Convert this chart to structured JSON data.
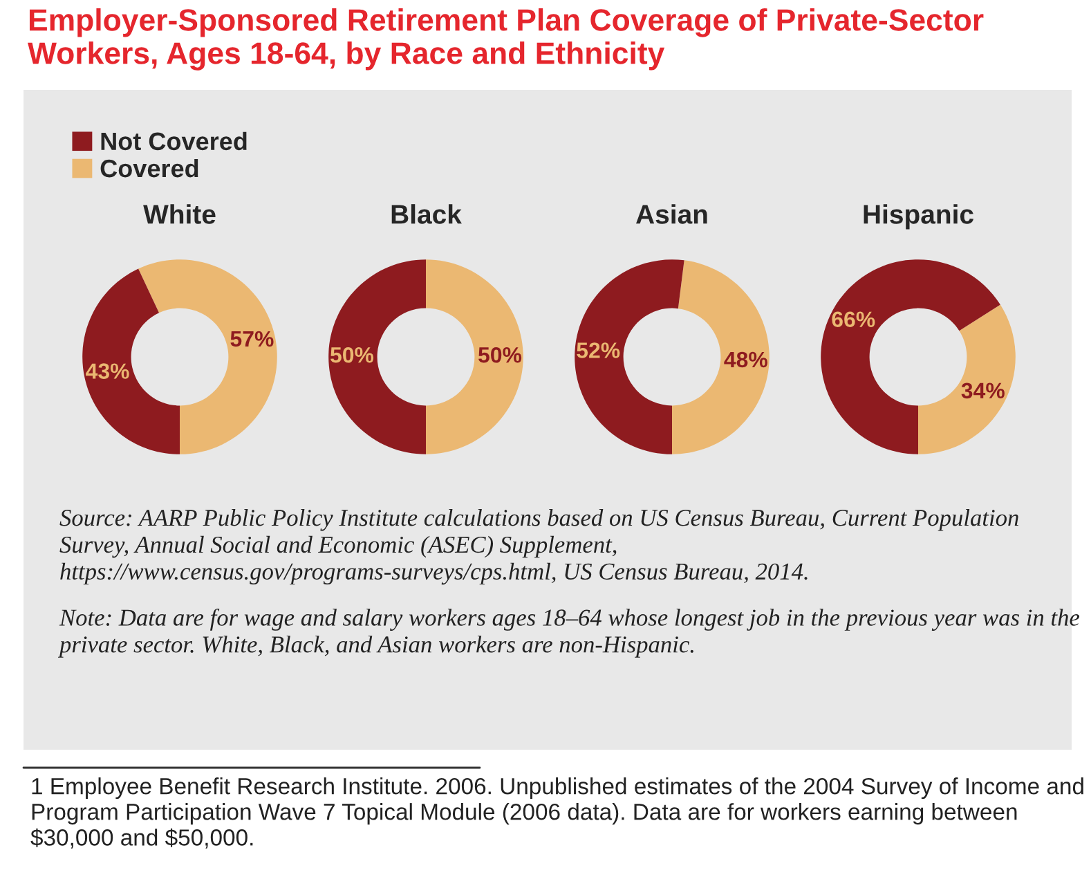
{
  "chart_data": [
    {
      "type": "other",
      "title": "Employer-Sponsored Retirement Plan Coverage of Private-Sector Workers, Ages 18-64, by Race and Ethnicity"
    },
    {
      "type": "donut",
      "title": "White",
      "categories": [
        "Not Covered",
        "Covered"
      ],
      "values": [
        43,
        57
      ],
      "colors": [
        "#8e1b1f",
        "#ebb872"
      ],
      "value_labels": [
        "43%",
        "57%"
      ],
      "legend": "top left"
    },
    {
      "type": "donut",
      "title": "Black",
      "categories": [
        null,
        null
      ],
      "values": [
        50,
        50
      ],
      "colors": [
        "#8e1b1f",
        "#ebb872"
      ],
      "value_labels": [
        "50%",
        "50%"
      ]
    },
    {
      "type": "donut",
      "title": "Asian",
      "categories": [
        null,
        null
      ],
      "values": [
        52,
        48
      ],
      "colors": [
        "#8e1b1f",
        "#ebb872"
      ],
      "value_labels": [
        "52%",
        "48%"
      ]
    },
    {
      "type": "donut",
      "title": "Hispanic",
      "categories": [
        null,
        null
      ],
      "values": [
        66,
        34
      ],
      "colors": [
        "#8e1b1f",
        "#ebb872"
      ],
      "value_labels": [
        "66%",
        "34%"
      ]
    },
    {
      "type": "other",
      "annotations": [
        "Source: AARP Public Policy Institute calculations based on US Census Bureau, Current Population Survey, Annual Social and Economic (ASEC) Supplement, https://www.census.gov/programs-surveys/cps.html, US Census Bureau, 2014.",
        "Note: Data are for wage and salary workers ages 18–64 whose longest job in the previous year was in the private sector. White, Black, and Asian workers are non-Hispanic.",
        "1 Employee Benefit Research Institute. 2006. Unpublished estimates of the 2004 Survey of Income and Program Participation Wave 7 Topical Module (2006 data). Data are for workers earning between $30,000 and $50,000."
      ]
    }
  ]
}
